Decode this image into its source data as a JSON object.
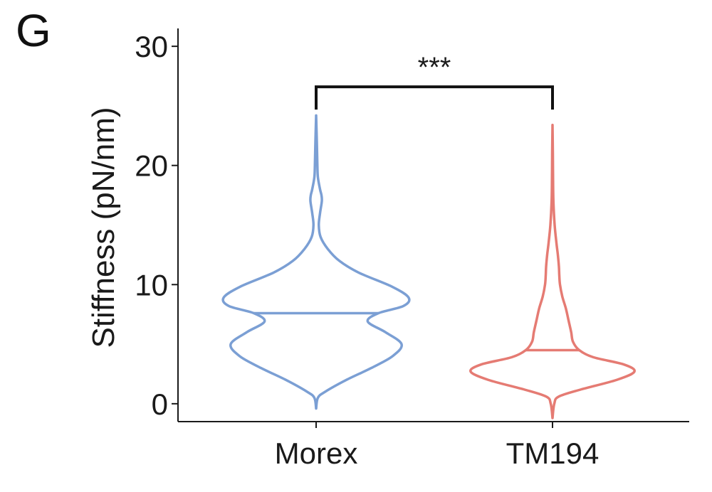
{
  "panel_label": "G",
  "chart_data": {
    "type": "violin",
    "categories": [
      "Morex",
      "TM194"
    ],
    "ylabel": "Stiffness (pN/nm)",
    "xlabel": "",
    "ylim": [
      -1.5,
      31.5
    ],
    "yticks": [
      0,
      10,
      20,
      30
    ],
    "grid": false,
    "legend": "none",
    "series": [
      {
        "category": "Morex",
        "color": "#7b9fd4",
        "median": 7.6,
        "density": [
          [
            -0.4,
            0.0
          ],
          [
            0.5,
            0.1
          ],
          [
            1.0,
            0.5
          ],
          [
            2.0,
            1.7
          ],
          [
            3.0,
            3.1
          ],
          [
            4.0,
            4.3
          ],
          [
            5.0,
            4.8
          ],
          [
            6.0,
            3.9
          ],
          [
            6.9,
            2.9
          ],
          [
            7.6,
            3.5
          ],
          [
            8.2,
            4.9
          ],
          [
            8.9,
            5.2
          ],
          [
            9.8,
            4.3
          ],
          [
            11.0,
            2.4
          ],
          [
            12.0,
            1.3
          ],
          [
            13.0,
            0.65
          ],
          [
            14.0,
            0.25
          ],
          [
            15.0,
            0.15
          ],
          [
            16.0,
            0.22
          ],
          [
            17.0,
            0.32
          ],
          [
            17.5,
            0.3
          ],
          [
            18.0,
            0.22
          ],
          [
            19.0,
            0.1
          ],
          [
            20.0,
            0.07
          ],
          [
            22.0,
            0.04
          ],
          [
            24.2,
            0.0
          ]
        ]
      },
      {
        "category": "TM194",
        "color": "#e57b73",
        "median": 4.5,
        "density": [
          [
            -1.2,
            0.0
          ],
          [
            0.0,
            0.1
          ],
          [
            0.6,
            0.35
          ],
          [
            1.2,
            1.6
          ],
          [
            2.0,
            3.6
          ],
          [
            2.7,
            4.6
          ],
          [
            3.3,
            4.0
          ],
          [
            3.9,
            2.3
          ],
          [
            4.5,
            1.5
          ],
          [
            5.2,
            1.15
          ],
          [
            6.0,
            1.05
          ],
          [
            7.0,
            0.9
          ],
          [
            8.0,
            0.75
          ],
          [
            9.0,
            0.55
          ],
          [
            10.0,
            0.42
          ],
          [
            10.8,
            0.38
          ],
          [
            11.5,
            0.36
          ],
          [
            12.5,
            0.3
          ],
          [
            13.5,
            0.22
          ],
          [
            15.0,
            0.12
          ],
          [
            17.0,
            0.05
          ],
          [
            19.0,
            0.03
          ],
          [
            21.0,
            0.02
          ],
          [
            23.4,
            0.0
          ]
        ]
      }
    ],
    "annotations": [
      {
        "type": "significance_bracket",
        "from": "Morex",
        "to": "TM194",
        "y": 26.6,
        "label": "***"
      }
    ]
  }
}
